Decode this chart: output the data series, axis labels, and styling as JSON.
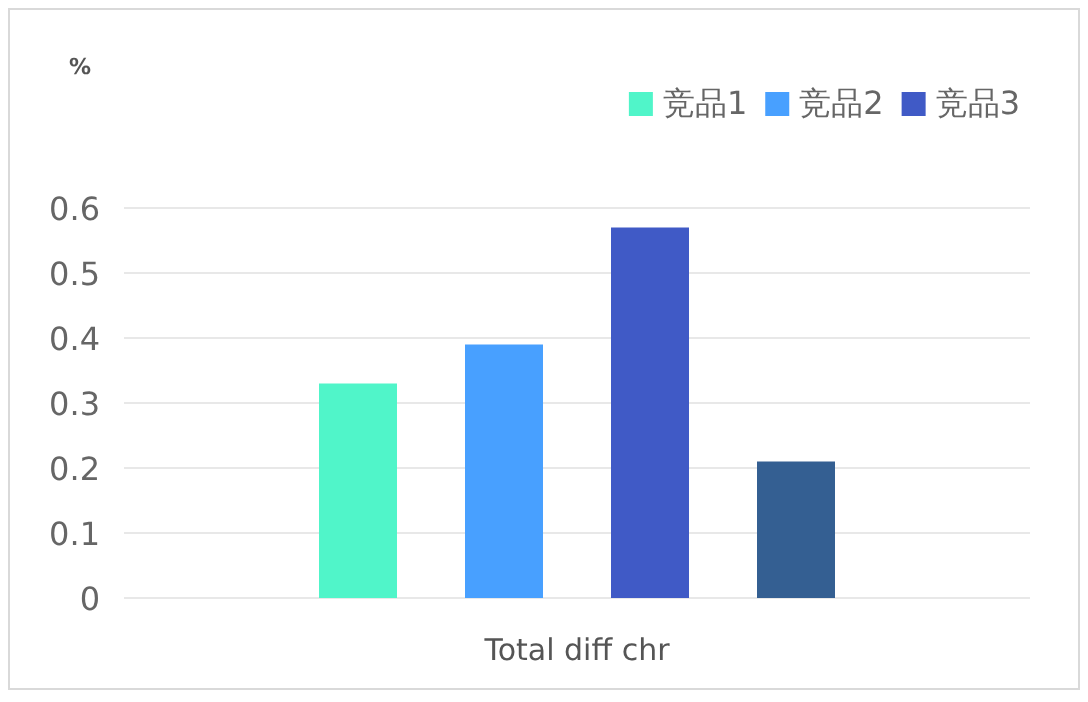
{
  "chart_data": {
    "type": "bar",
    "ylabel": "%",
    "categories": [
      "Total diff chr"
    ],
    "series": [
      {
        "name": "竞品1",
        "color": "#50f5c9",
        "values": [
          0.33
        ]
      },
      {
        "name": "竞品2",
        "color": "#48a0ff",
        "values": [
          0.39
        ]
      },
      {
        "name": "竞品3",
        "color": "#405ac6",
        "values": [
          0.57
        ]
      },
      {
        "color": "#345f92",
        "values": [
          0.21
        ]
      }
    ],
    "ylim": [
      0,
      0.6
    ],
    "yticks": [
      0,
      0.1,
      0.2,
      0.3,
      0.4,
      0.5,
      0.6
    ],
    "grid": "y",
    "legend": "top right"
  }
}
